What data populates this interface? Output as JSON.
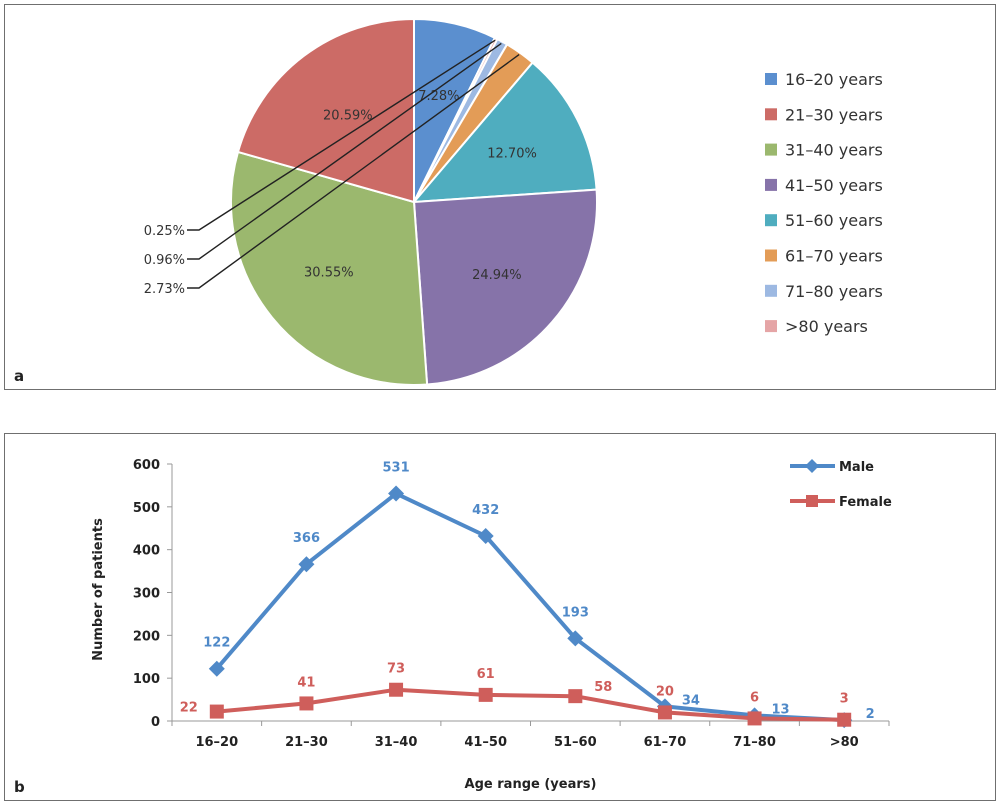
{
  "chart_data": [
    {
      "type": "pie",
      "panel_label": "a",
      "categories": [
        "16–20 years",
        "21–30 years",
        "31–40 years",
        "41–50 years",
        "51–60 years",
        "61–70 years",
        "71–80 years",
        ">80 years"
      ],
      "values": [
        7.28,
        20.59,
        30.55,
        24.94,
        12.7,
        2.73,
        0.96,
        0.25
      ],
      "value_labels": [
        "7.28%",
        "20.59%",
        "30.55%",
        "24.94%",
        "12.70%",
        "2.73%",
        "0.96%",
        "0.25%"
      ],
      "colors": [
        "#5b8fcf",
        "#cc6b66",
        "#9bb86e",
        "#8673a9",
        "#4fadbf",
        "#e39c57",
        "#9db9e2",
        "#e5a5a6"
      ],
      "start_category": "21–30 years",
      "legend_position": "right"
    },
    {
      "type": "line",
      "panel_label": "b",
      "categories": [
        "16–20",
        "21–30",
        "31–40",
        "41–50",
        "51–60",
        "61–70",
        "71–80",
        ">80"
      ],
      "series": [
        {
          "name": "Male",
          "values": [
            122,
            366,
            531,
            432,
            193,
            34,
            13,
            2
          ],
          "labels": [
            "122",
            "366",
            "531",
            "432",
            "193",
            "34",
            "13",
            "2"
          ],
          "color": "#4f89c8",
          "marker": "diamond"
        },
        {
          "name": "Female",
          "values": [
            22,
            41,
            73,
            61,
            58,
            20,
            6,
            3
          ],
          "labels": [
            "22",
            "41",
            "73",
            "61",
            "58",
            "20",
            "6",
            "3"
          ],
          "color": "#cf5e5b",
          "marker": "square"
        }
      ],
      "xlabel": "Age range (years)",
      "ylabel": "Number of patients",
      "ylim": [
        0,
        600
      ],
      "yticks": [
        0,
        100,
        200,
        300,
        400,
        500,
        600
      ],
      "ytick_labels": [
        "0",
        "100",
        "200",
        "300",
        "400",
        "500",
        "600"
      ],
      "legend_position": "top-right"
    }
  ]
}
